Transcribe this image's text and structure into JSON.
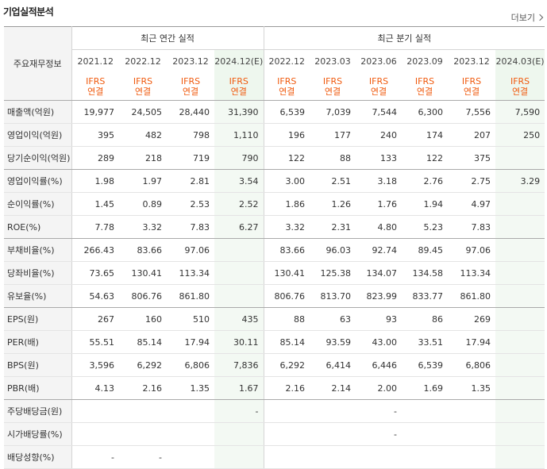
{
  "title": "기업실적분석",
  "more_label": "더보기",
  "header": {
    "row_label": "주요재무정보",
    "annual_group": "최근 연간 실적",
    "quarter_group": "최근 분기 실적",
    "periods": [
      "2021.12",
      "2022.12",
      "2023.12",
      "2024.12(E)",
      "2022.12",
      "2023.03",
      "2023.06",
      "2023.09",
      "2023.12",
      "2024.03(E)"
    ],
    "ifrs_top": "IFRS",
    "ifrs_bottom": "연결"
  },
  "rows": [
    {
      "label": "매출액(억원)",
      "values": [
        "19,977",
        "24,505",
        "28,440",
        "31,390",
        "6,539",
        "7,039",
        "7,544",
        "6,300",
        "7,556",
        "7,590"
      ]
    },
    {
      "label": "영업이익(억원)",
      "values": [
        "395",
        "482",
        "798",
        "1,110",
        "196",
        "177",
        "240",
        "174",
        "207",
        "250"
      ]
    },
    {
      "label": "당기순이익(억원)",
      "values": [
        "289",
        "218",
        "719",
        "790",
        "122",
        "88",
        "133",
        "122",
        "375",
        ""
      ]
    },
    {
      "label": "영업이익률(%)",
      "values": [
        "1.98",
        "1.97",
        "2.81",
        "3.54",
        "3.00",
        "2.51",
        "3.18",
        "2.76",
        "2.75",
        "3.29"
      ]
    },
    {
      "label": "순이익률(%)",
      "values": [
        "1.45",
        "0.89",
        "2.53",
        "2.52",
        "1.86",
        "1.26",
        "1.76",
        "1.94",
        "4.97",
        ""
      ]
    },
    {
      "label": "ROE(%)",
      "values": [
        "7.78",
        "3.32",
        "7.83",
        "6.27",
        "3.32",
        "2.31",
        "4.80",
        "5.23",
        "7.83",
        ""
      ]
    },
    {
      "label": "부채비율(%)",
      "values": [
        "266.43",
        "83.66",
        "97.06",
        "",
        "83.66",
        "96.03",
        "92.74",
        "89.45",
        "97.06",
        ""
      ]
    },
    {
      "label": "당좌비율(%)",
      "values": [
        "73.65",
        "130.41",
        "113.34",
        "",
        "130.41",
        "125.38",
        "134.07",
        "134.58",
        "113.34",
        ""
      ]
    },
    {
      "label": "유보율(%)",
      "values": [
        "54.63",
        "806.76",
        "861.80",
        "",
        "806.76",
        "813.70",
        "823.99",
        "833.77",
        "861.80",
        ""
      ]
    },
    {
      "label": "EPS(원)",
      "values": [
        "267",
        "160",
        "510",
        "435",
        "88",
        "63",
        "93",
        "86",
        "269",
        ""
      ]
    },
    {
      "label": "PER(배)",
      "values": [
        "55.51",
        "85.14",
        "17.94",
        "30.11",
        "85.14",
        "93.59",
        "43.00",
        "33.51",
        "17.94",
        ""
      ]
    },
    {
      "label": "BPS(원)",
      "values": [
        "3,596",
        "6,292",
        "6,806",
        "7,836",
        "6,292",
        "6,414",
        "6,446",
        "6,539",
        "6,806",
        ""
      ]
    },
    {
      "label": "PBR(배)",
      "values": [
        "4.13",
        "2.16",
        "1.35",
        "1.67",
        "2.16",
        "2.14",
        "2.00",
        "1.69",
        "1.35",
        ""
      ]
    },
    {
      "label": "주당배당금(원)",
      "values": [
        "",
        "",
        "",
        "-",
        "",
        "",
        "-",
        "",
        "",
        ""
      ]
    },
    {
      "label": "시가배당률(%)",
      "values": [
        "",
        "",
        "",
        "",
        "",
        "",
        "-",
        "",
        "",
        ""
      ]
    },
    {
      "label": "배당성향(%)",
      "values": [
        "-",
        "-",
        "",
        "",
        "",
        "",
        "",
        "",
        "",
        ""
      ]
    }
  ]
}
